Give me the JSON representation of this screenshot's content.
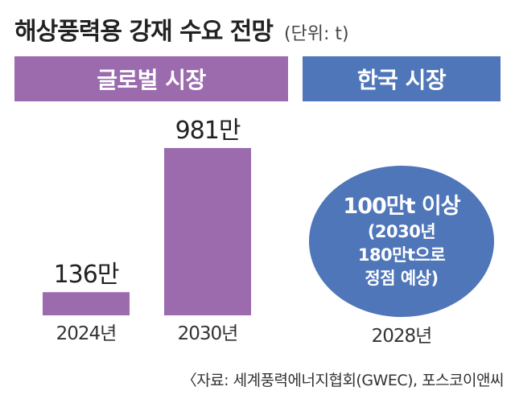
{
  "title": "해상풍력용 강재 수요 전망",
  "unit": "(단위: t)",
  "sections": {
    "global": "글로벌 시장",
    "korea": "한국 시장"
  },
  "chart_data": {
    "type": "bar",
    "categories": [
      "2024년",
      "2030년"
    ],
    "values": [
      1360000,
      9810000
    ],
    "data_labels": [
      "136만",
      "981만"
    ],
    "title": "글로벌 시장",
    "ylim": [
      0,
      10000000
    ],
    "grid": false,
    "color": "#9B6BAE"
  },
  "korea_market": {
    "headline": "100만t 이상",
    "detail": [
      "(2030년",
      "180만t으로",
      "정점 예상)"
    ],
    "year": "2028년"
  },
  "source": "〈자료: 세계풍력에너지협회(GWEC), 포스코이앤씨",
  "colors": {
    "global": "#9B6BAE",
    "korea": "#4F76B9",
    "text": "#222222"
  }
}
